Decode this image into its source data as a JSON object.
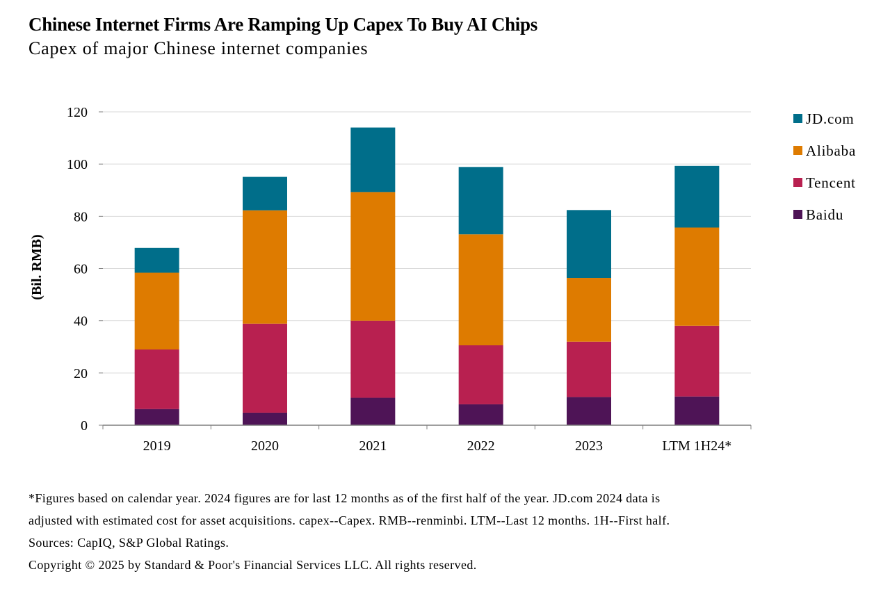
{
  "title": "Chinese Internet Firms Are Ramping Up Capex To Buy AI Chips",
  "subtitle": "Capex of major Chinese internet companies",
  "footnotes": {
    "line1": "*Figures based on calendar year. 2024 figures are for last 12 months as of the first half of the year. JD.com 2024 data is",
    "line2": "adjusted with estimated cost for asset acquisitions. capex--Capex. RMB--renminbi. LTM--Last 12 months. 1H--First half.",
    "sources": "Sources: CapIQ, S&P Global Ratings.",
    "copyright": "Copyright © 2025 by Standard & Poor's Financial Services LLC. All rights reserved."
  },
  "chart_data": {
    "type": "bar",
    "stacked": true,
    "categories": [
      "2019",
      "2020",
      "2021",
      "2022",
      "2023",
      "LTM 1H24*"
    ],
    "ylabel": "(Bil. RMB)",
    "xlabel": "",
    "ylim": [
      0,
      120
    ],
    "yticks": [
      0,
      20,
      40,
      60,
      80,
      100,
      120
    ],
    "grid": true,
    "legend_position": "right",
    "series": [
      {
        "name": "Baidu",
        "color": "#4e1456",
        "values": [
          6.2,
          4.8,
          10.5,
          8.0,
          10.8,
          11.0
        ]
      },
      {
        "name": "Tencent",
        "color": "#b82050",
        "values": [
          22.8,
          34.1,
          29.5,
          22.6,
          21.2,
          27.1
        ]
      },
      {
        "name": "Alibaba",
        "color": "#de7b00",
        "values": [
          29.4,
          43.4,
          49.3,
          42.5,
          24.4,
          37.6
        ]
      },
      {
        "name": "JD.com",
        "color": "#006e8a",
        "values": [
          9.5,
          12.8,
          24.7,
          25.8,
          26.0,
          23.6
        ]
      }
    ],
    "legend_order": [
      "JD.com",
      "Alibaba",
      "Tencent",
      "Baidu"
    ]
  }
}
